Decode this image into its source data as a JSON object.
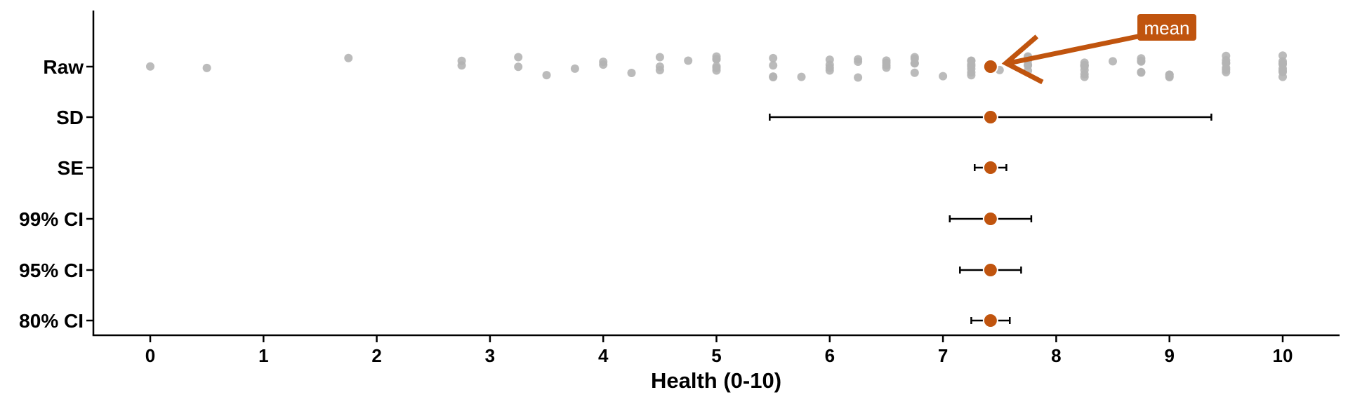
{
  "chart_data": {
    "type": "scatter",
    "xlabel": "Health (0-10)",
    "xlim": [
      -0.5,
      10.5
    ],
    "xticks": [
      0,
      1,
      2,
      3,
      4,
      5,
      6,
      7,
      8,
      9,
      10
    ],
    "categories": [
      "Raw",
      "SD",
      "SE",
      "99% CI",
      "95% CI",
      "80% CI"
    ],
    "mean": 7.42,
    "intervals": [
      {
        "name": "SD",
        "low": 5.47,
        "high": 9.37
      },
      {
        "name": "SE",
        "low": 7.28,
        "high": 7.56
      },
      {
        "name": "99% CI",
        "low": 7.06,
        "high": 7.78
      },
      {
        "name": "95% CI",
        "low": 7.15,
        "high": 7.69
      },
      {
        "name": "80% CI",
        "low": 7.25,
        "high": 7.59
      }
    ],
    "raw_values": [
      0,
      0.5,
      1.75,
      2.75,
      2.75,
      3.25,
      3.25,
      3.5,
      3.75,
      4,
      4,
      4.25,
      4.5,
      4.5,
      4.5,
      4.75,
      5,
      5,
      5,
      5,
      5,
      5,
      5.5,
      5.5,
      5.5,
      5.5,
      5.75,
      6,
      6,
      6,
      6,
      6.25,
      6.25,
      6.25,
      6.5,
      6.5,
      6.5,
      6.5,
      6.75,
      6.75,
      6.75,
      6.75,
      6.75,
      7,
      7.25,
      7.25,
      7.25,
      7.25,
      7.25,
      7.25,
      7.25,
      7.5,
      7.75,
      7.75,
      7.75,
      7.75,
      7.75,
      7.75,
      7.75,
      8.25,
      8.25,
      8.25,
      8.25,
      8.25,
      8.25,
      8.25,
      8.25,
      8.25,
      8.5,
      8.75,
      8.75,
      8.75,
      8.75,
      8.75,
      9,
      9,
      9,
      9,
      9.5,
      9.5,
      9.5,
      9.5,
      9.5,
      9.5,
      9.5,
      10,
      10,
      10,
      10,
      10,
      10,
      10,
      10
    ],
    "annotation": "mean",
    "colors": {
      "mean": "#c0540e",
      "raw": "#b4b4b4",
      "errorbar": "#000000",
      "annot_text": "#ffffff"
    },
    "grid": false,
    "legend": "none"
  }
}
